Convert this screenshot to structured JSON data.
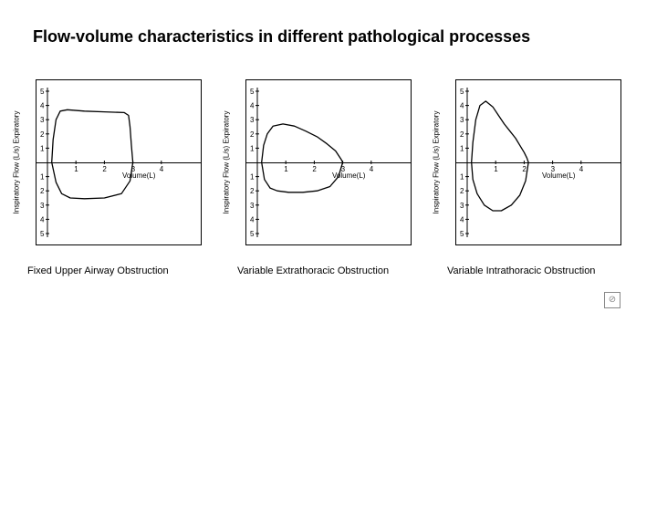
{
  "title": "Flow-volume characteristics in different pathological processes",
  "axis": {
    "x_label": "Volume(L)",
    "y_label_top": "Expiratory",
    "y_label_bottom": "Inspiratory",
    "y_label_unit": "Flow (L/s)",
    "x_ticks": [
      1,
      2,
      3,
      4
    ],
    "y_ticks_pos": [
      1,
      2,
      3,
      4,
      5
    ],
    "y_ticks_neg": [
      1,
      2,
      3,
      4,
      5
    ],
    "x_max": 5,
    "y_max": 5,
    "y_min": -5,
    "tick_fontsize": 8,
    "label_fontsize": 8,
    "axis_color": "#000000",
    "background_color": "#ffffff"
  },
  "panels": [
    {
      "caption": "Fixed Upper Airway Obstruction",
      "type": "line",
      "stroke_color": "#000000",
      "stroke_width": 1.3,
      "fill": "none",
      "loop_points": [
        [
          0.15,
          0.0
        ],
        [
          0.2,
          1.6
        ],
        [
          0.3,
          3.0
        ],
        [
          0.45,
          3.6
        ],
        [
          0.7,
          3.7
        ],
        [
          1.3,
          3.6
        ],
        [
          2.0,
          3.55
        ],
        [
          2.7,
          3.5
        ],
        [
          2.85,
          3.3
        ],
        [
          2.9,
          2.5
        ],
        [
          2.95,
          1.2
        ],
        [
          3.0,
          0.0
        ],
        [
          2.9,
          -1.3
        ],
        [
          2.6,
          -2.2
        ],
        [
          2.0,
          -2.5
        ],
        [
          1.3,
          -2.55
        ],
        [
          0.8,
          -2.5
        ],
        [
          0.5,
          -2.2
        ],
        [
          0.3,
          -1.4
        ],
        [
          0.15,
          0.0
        ]
      ]
    },
    {
      "caption": "Variable Extrathoracic Obstruction",
      "type": "line",
      "stroke_color": "#000000",
      "stroke_width": 1.3,
      "fill": "none",
      "loop_points": [
        [
          0.15,
          0.0
        ],
        [
          0.22,
          1.2
        ],
        [
          0.35,
          2.0
        ],
        [
          0.55,
          2.55
        ],
        [
          0.9,
          2.7
        ],
        [
          1.3,
          2.55
        ],
        [
          1.7,
          2.2
        ],
        [
          2.1,
          1.8
        ],
        [
          2.45,
          1.3
        ],
        [
          2.75,
          0.8
        ],
        [
          2.95,
          0.2
        ],
        [
          3.0,
          0.0
        ],
        [
          2.85,
          -1.0
        ],
        [
          2.55,
          -1.7
        ],
        [
          2.1,
          -2.0
        ],
        [
          1.6,
          -2.1
        ],
        [
          1.1,
          -2.1
        ],
        [
          0.7,
          -2.0
        ],
        [
          0.45,
          -1.8
        ],
        [
          0.25,
          -1.2
        ],
        [
          0.15,
          0.0
        ]
      ]
    },
    {
      "caption": "Variable Intrathoracic Obstruction",
      "type": "line",
      "stroke_color": "#000000",
      "stroke_width": 1.3,
      "fill": "none",
      "loop_points": [
        [
          0.15,
          0.0
        ],
        [
          0.2,
          1.4
        ],
        [
          0.3,
          3.0
        ],
        [
          0.45,
          4.0
        ],
        [
          0.65,
          4.3
        ],
        [
          0.9,
          3.9
        ],
        [
          1.1,
          3.3
        ],
        [
          1.3,
          2.7
        ],
        [
          1.5,
          2.2
        ],
        [
          1.7,
          1.7
        ],
        [
          1.85,
          1.2
        ],
        [
          2.0,
          0.7
        ],
        [
          2.1,
          0.3
        ],
        [
          2.15,
          0.0
        ],
        [
          2.05,
          -1.3
        ],
        [
          1.85,
          -2.3
        ],
        [
          1.55,
          -3.0
        ],
        [
          1.2,
          -3.4
        ],
        [
          0.9,
          -3.4
        ],
        [
          0.6,
          -3.0
        ],
        [
          0.35,
          -2.2
        ],
        [
          0.2,
          -1.2
        ],
        [
          0.15,
          0.0
        ]
      ]
    }
  ],
  "caption_fontsize": 11,
  "caption_color": "#000000",
  "title_fontsize": 18,
  "title_color": "#000000",
  "broken_icon": "⊘"
}
